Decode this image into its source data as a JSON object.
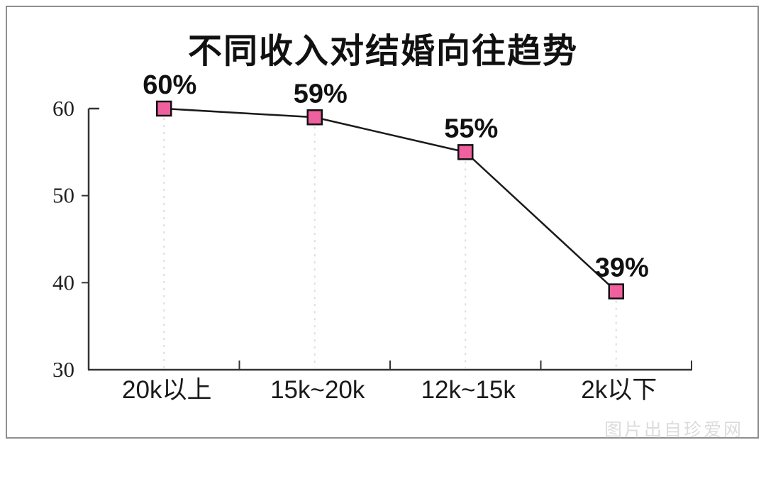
{
  "frame": {
    "border_color": "#8f8f8f"
  },
  "chart_data": {
    "type": "line",
    "title": "不同收入对结婚向往趋势",
    "categories": [
      "20k以上",
      "15k~20k",
      "12k~15k",
      "2k以下"
    ],
    "values": [
      60,
      59,
      55,
      39
    ],
    "point_labels": [
      "60%",
      "59%",
      "55%",
      "39%"
    ],
    "xlabel": "",
    "ylabel": "",
    "ylim": [
      30,
      60
    ],
    "yticks": [
      30,
      40,
      50,
      60
    ],
    "legend": "none",
    "grid": "vertical dashed guide from each point down to x-axis",
    "line_color": "#1a1a1a",
    "marker": {
      "shape": "square",
      "fill": "#f0609e",
      "stroke": "#111111"
    },
    "guide_color": "#dddddd",
    "axis_color": "#333333",
    "label_color": "#111111"
  },
  "watermark": {
    "text": "图片出自珍爱网",
    "color": "#dcdcdc"
  }
}
